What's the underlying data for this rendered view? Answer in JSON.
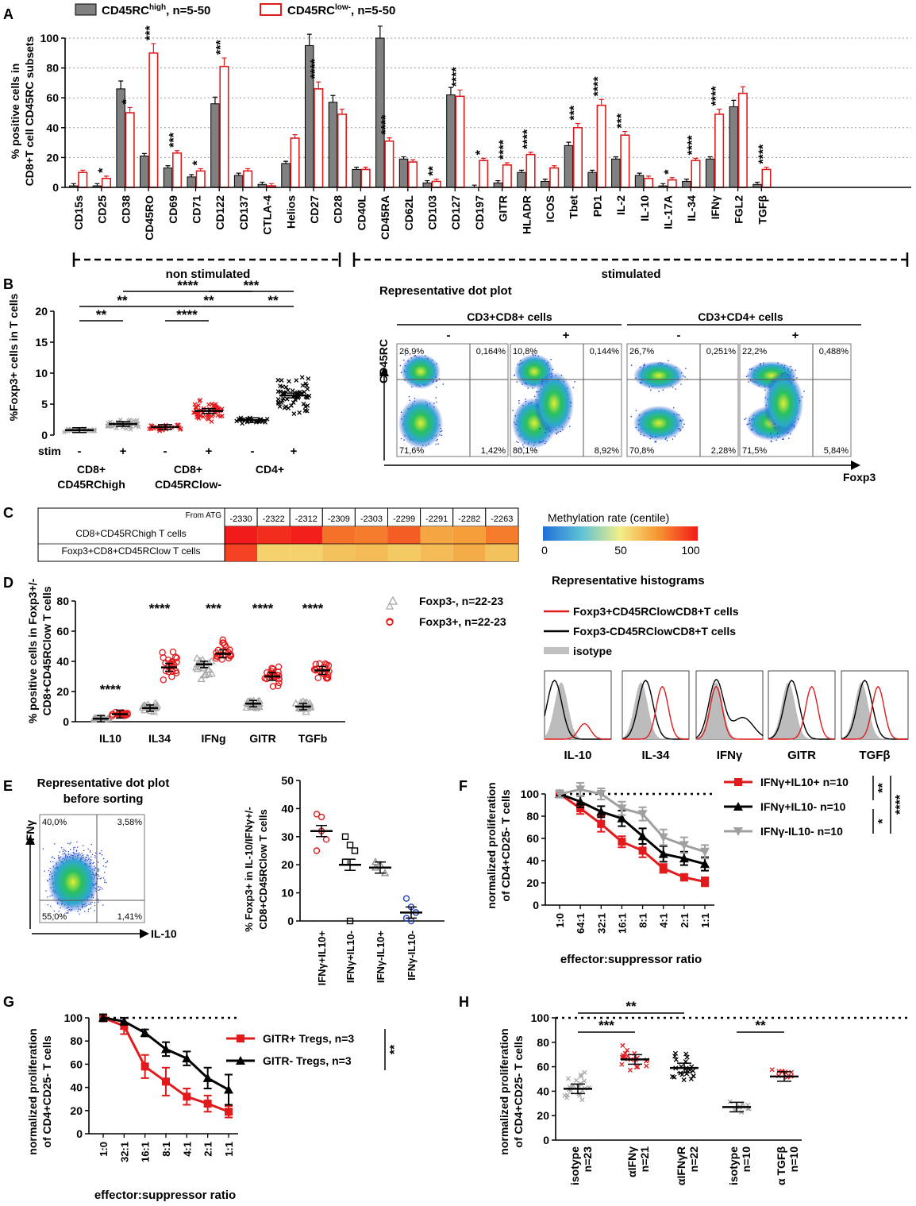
{
  "colors": {
    "gray": "#808080",
    "red": "#e31a1c",
    "black": "#000000",
    "lightgray": "#b0b0b0",
    "blue": "#1f3fbf"
  },
  "panel_labels": [
    "A",
    "B",
    "C",
    "D",
    "E",
    "F",
    "G",
    "H"
  ],
  "chart_data": [
    {
      "id": "A",
      "type": "bar",
      "legend": [
        {
          "name": "CD45RC",
          "sup": "high",
          "suffix": ", n=5-50"
        },
        {
          "name": "CD45RC",
          "sup": "low-",
          "suffix": ", n=5-50"
        }
      ],
      "ylabel_line1": "% positive cells in",
      "ylabel_line2": "CD8+T cell CD45RC subsets",
      "ylim": [
        0,
        100
      ],
      "yticks": [
        0,
        20,
        40,
        60,
        80,
        100
      ],
      "categories": [
        "CD15s",
        "CD25",
        "CD38",
        "CD45RO",
        "CD69",
        "CD71",
        "CD122",
        "CD137",
        "CTLA-4",
        "Helios",
        "CD27",
        "CD28",
        "CD40L",
        "CD45RA",
        "CD62L",
        "CD103",
        "CD127",
        "CD197",
        "GITR",
        "HLADR",
        "ICOS",
        "Tbet",
        "PD1",
        "IL-2",
        "IL-10",
        "IL-17A",
        "IL-34",
        "IFNγ",
        "FGL2",
        "TGFβ"
      ],
      "series": [
        {
          "name": "CD45RChigh",
          "values": [
            1,
            1,
            66,
            21,
            13,
            7,
            56,
            8,
            2,
            16,
            95,
            57,
            12,
            100,
            19,
            3,
            62,
            0,
            3,
            10,
            4,
            28,
            10,
            19,
            8,
            1,
            4,
            19,
            54,
            2
          ]
        },
        {
          "name": "CD45RClow-",
          "values": [
            10,
            6,
            50,
            90,
            23,
            11,
            81,
            11,
            1,
            33,
            66,
            49,
            12,
            31,
            17,
            4,
            61,
            18,
            15,
            22,
            13,
            40,
            55,
            35,
            6,
            5,
            18,
            49,
            63,
            12
          ]
        }
      ],
      "significance": [
        "",
        "*",
        "*",
        "***",
        "***",
        "*",
        "***",
        "",
        "",
        "",
        "****",
        "",
        "",
        "****",
        "",
        "**",
        "****",
        "*",
        "****",
        "****",
        "",
        "***",
        "****",
        "***",
        "",
        "*",
        "****",
        "****",
        "",
        "****"
      ],
      "groups": [
        {
          "label": "non stimulated"
        },
        {
          "label": "stimulated"
        }
      ]
    },
    {
      "id": "B",
      "type": "scatter",
      "ylabel": "%Foxp3+ cells in T cells",
      "ylim": [
        0,
        20
      ],
      "yticks": [
        0,
        5,
        10,
        15,
        20
      ],
      "stim_label": "stim",
      "stim_values": [
        "-",
        "+",
        "-",
        "+",
        "-",
        "+"
      ],
      "groups": [
        {
          "line1": "CD8+",
          "line2": "CD45RChigh"
        },
        {
          "line1": "CD8+",
          "line2": "CD45RClow-"
        },
        {
          "line1": "CD4+",
          "line2": ""
        }
      ],
      "means": [
        0.8,
        1.8,
        1.3,
        3.9,
        2.4,
        6.4
      ],
      "significance": [
        "**",
        "**",
        "****",
        "****",
        "**",
        "***",
        "**"
      ]
    },
    {
      "id": "B-dotplot",
      "type": "scatter",
      "title": "Representative dot plot",
      "headers": [
        "CD3+CD8+ cells",
        "CD3+CD4+ cells"
      ],
      "stim": [
        "-",
        "+",
        "-",
        "+"
      ],
      "xlabel": "Foxp3",
      "ylabel": "CD45RC",
      "quadrants": [
        {
          "ul": "26,9%",
          "ur": "0,164%",
          "ll": "71,6%",
          "lr": "1,42%"
        },
        {
          "ul": "10,8%",
          "ur": "0,144%",
          "ll": "80,1%",
          "lr": "8,92%"
        },
        {
          "ul": "26,7%",
          "ur": "0,251%",
          "ll": "70,8%",
          "lr": "2,28%"
        },
        {
          "ul": "22,2%",
          "ur": "0,488%",
          "ll": "71,5%",
          "lr": "5,84%"
        }
      ]
    },
    {
      "id": "C",
      "type": "heatmap",
      "corner": "From ATG",
      "positions": [
        "-2330",
        "-2322",
        "-2312",
        "-2309",
        "-2303",
        "-2299",
        "-2291",
        "-2282",
        "-2263"
      ],
      "rows": [
        {
          "label": "CD8+CD45RChigh T cells",
          "values": [
            100,
            96,
            99,
            82,
            80,
            86,
            70,
            72,
            80
          ]
        },
        {
          "label": "Foxp3+CD8+CD45RClow T cells",
          "values": [
            92,
            58,
            58,
            62,
            64,
            60,
            64,
            68,
            62
          ]
        }
      ],
      "scale_title": "Methylation rate (centile)",
      "scale_ticks": [
        "0",
        "50",
        "100"
      ]
    },
    {
      "id": "D",
      "type": "scatter",
      "ylabel_line1": "% positive cells in Foxp3+/-",
      "ylabel_line2": "CD8+CD45RClow T cells",
      "ylim": [
        0,
        80
      ],
      "yticks": [
        0,
        20,
        40,
        60,
        80
      ],
      "categories": [
        "IL10",
        "IL34",
        "IFNg",
        "GITR",
        "TGFb"
      ],
      "series": [
        {
          "name": "Foxp3-, n=22-23",
          "means": [
            2,
            9,
            38,
            12,
            10
          ]
        },
        {
          "name": "Foxp3+, n=22-23",
          "means": [
            5,
            36,
            45,
            30,
            34
          ]
        }
      ],
      "significance": [
        "****",
        "****",
        "***",
        "****",
        "****"
      ]
    },
    {
      "id": "D-histograms",
      "type": "area",
      "title": "Representative histograms",
      "legend": [
        "Foxp3+CD45RClowCD8+T cells",
        "Foxp3-CD45RClowCD8+T cells",
        "isotype"
      ],
      "markers": [
        "IL-10",
        "IL-34",
        "IFNγ",
        "GITR",
        "TGFβ"
      ]
    },
    {
      "id": "E-dotplot",
      "type": "scatter",
      "title_line1": "Representative dot plot",
      "title_line2": "before sorting",
      "xlabel": "IL-10",
      "ylabel": "IFNγ",
      "quadrants": {
        "ul": "40,0%",
        "ur": "3,58%",
        "ll": "55,0%",
        "lr": "1,41%"
      }
    },
    {
      "id": "E",
      "type": "scatter",
      "ylabel_line1": "% Foxp3+ in IL-10/IFNγ+/-",
      "ylabel_line2": "CD8+CD45RClow T cells",
      "ylim": [
        0,
        50
      ],
      "yticks": [
        0,
        10,
        20,
        30,
        40,
        50
      ],
      "categories": [
        "IFNγ+IL10+",
        "IFNγ+IL10-",
        "IFNγ-IL10+",
        "IFNγ-IL10-"
      ],
      "means": [
        32,
        20,
        19,
        3
      ],
      "points": [
        [
          38,
          32,
          29,
          25,
          37
        ],
        [
          30,
          27,
          25,
          21,
          0
        ],
        [
          21,
          20,
          17,
          19
        ],
        [
          8,
          5,
          3,
          1,
          0
        ]
      ]
    },
    {
      "id": "F",
      "type": "line",
      "ylabel_line1": "normalized proliferation",
      "ylabel_line2": "of CD4+CD25- T cells",
      "xlabel": "effector:suppressor ratio",
      "categories": [
        "1:0",
        "64:1",
        "32:1",
        "16:1",
        "8:1",
        "4:1",
        "2:1",
        "1:1"
      ],
      "ylim": [
        0,
        100
      ],
      "yticks": [
        0,
        20,
        40,
        60,
        80,
        100
      ],
      "series": [
        {
          "name": "IFNγ+IL10+ n=10",
          "values": [
            100,
            87,
            73,
            57,
            49,
            33,
            25,
            21
          ],
          "errors": [
            3,
            5,
            7,
            5,
            6,
            4,
            3,
            4
          ]
        },
        {
          "name": "IFNγ+IL10- n=10",
          "values": [
            100,
            93,
            84,
            78,
            62,
            46,
            42,
            37
          ],
          "errors": [
            3,
            5,
            5,
            7,
            7,
            7,
            6,
            6
          ]
        },
        {
          "name": "IFNγ-IL10- n=10",
          "values": [
            100,
            104,
            100,
            87,
            82,
            61,
            54,
            48
          ],
          "errors": [
            3,
            6,
            5,
            6,
            6,
            7,
            7,
            6
          ]
        }
      ],
      "significance": [
        "**",
        "*",
        "****"
      ]
    },
    {
      "id": "G",
      "type": "line",
      "ylabel_line1": "normalized proliferation",
      "ylabel_line2": "of CD4+CD25- T cells",
      "xlabel": "effector:suppressor ratio",
      "categories": [
        "1:0",
        "32:1",
        "16:1",
        "8:1",
        "4:1",
        "2:1",
        "1:1"
      ],
      "ylim": [
        0,
        100
      ],
      "yticks": [
        0,
        20,
        40,
        60,
        80,
        100
      ],
      "series": [
        {
          "name": "GITR+ Tregs, n=3",
          "values": [
            100,
            93,
            58,
            45,
            32,
            26,
            19
          ],
          "errors": [
            3,
            7,
            10,
            12,
            7,
            7,
            5
          ]
        },
        {
          "name": "GITR- Tregs, n=3",
          "values": [
            100,
            97,
            87,
            73,
            65,
            48,
            38
          ],
          "errors": [
            3,
            3,
            3,
            6,
            6,
            9,
            13
          ]
        }
      ],
      "significance": [
        "**"
      ]
    },
    {
      "id": "H",
      "type": "scatter",
      "ylabel_line1": "normalized proliferation",
      "ylabel_line2": "of CD4+CD25- T cells",
      "ylim": [
        0,
        100
      ],
      "yticks": [
        0,
        20,
        40,
        60,
        80,
        100
      ],
      "categories": [
        {
          "name": "isotype",
          "n": "n=23"
        },
        {
          "name": "αIFNγ",
          "n": "n=21"
        },
        {
          "name": "αIFNγR",
          "n": "n=22"
        },
        {
          "name": "isotype",
          "n": "n=10"
        },
        {
          "name": "α TGFβ",
          "n": "n=10"
        }
      ],
      "means": [
        42,
        66,
        59,
        27,
        52
      ],
      "significance": [
        "***",
        "**",
        "**"
      ]
    }
  ]
}
